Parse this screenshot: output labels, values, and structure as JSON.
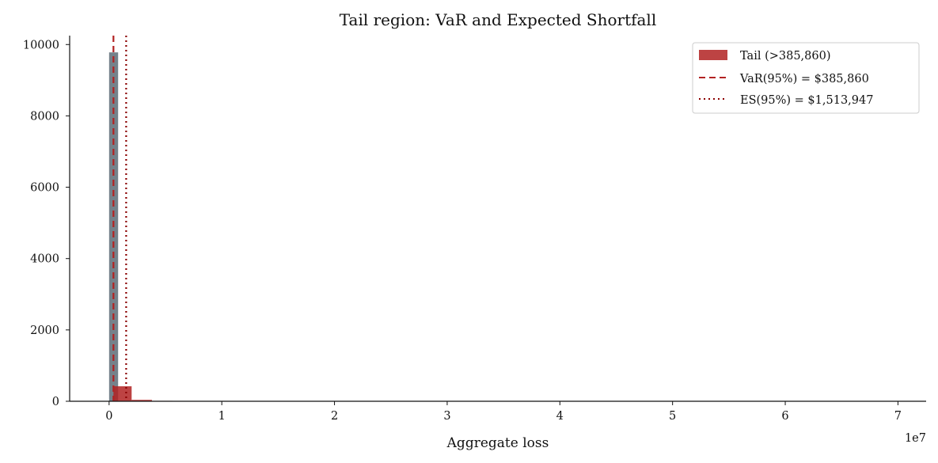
{
  "chart_data": {
    "type": "bar",
    "title": "Tail region: VaR and Expected Shortfall",
    "xlabel": "Aggregate loss",
    "ylabel": "",
    "x_offset_text": "1e7",
    "xlim": [
      -0.35,
      7.25
    ],
    "ylim": [
      0,
      10250
    ],
    "x_unit_multiplier": 10000000,
    "xticks": [
      0,
      1,
      2,
      3,
      4,
      5,
      6,
      7
    ],
    "xtick_labels": [
      "0",
      "1",
      "2",
      "3",
      "4",
      "5",
      "6",
      "7"
    ],
    "yticks": [
      0,
      2000,
      4000,
      6000,
      8000,
      10000
    ],
    "ytick_labels": [
      "0",
      "2000",
      "4000",
      "6000",
      "8000",
      "10000"
    ],
    "grid": false,
    "legend_placement": "top-right",
    "series": [
      {
        "name": "",
        "color": "#6e7b85",
        "bins": [
          {
            "x0": 0.0,
            "x1": 0.08,
            "value": 9780
          }
        ]
      },
      {
        "name": "Tail (>385,860)",
        "color": "#b22222",
        "bins": [
          {
            "x0": 0.0386,
            "x1": 0.2,
            "value": 420
          },
          {
            "x0": 0.2,
            "x1": 0.38,
            "value": 40
          },
          {
            "x0": 0.38,
            "x1": 0.56,
            "value": 12
          },
          {
            "x0": 0.56,
            "x1": 0.74,
            "value": 5
          }
        ]
      }
    ],
    "reference_lines": [
      {
        "name": "VaR(95%) = $385,860",
        "x": 0.038586,
        "color": "#b22222",
        "style": "dashed"
      },
      {
        "name": "ES(95%) = $1,513,947",
        "x": 0.1513947,
        "color": "#8b0000",
        "style": "dotted"
      }
    ]
  }
}
